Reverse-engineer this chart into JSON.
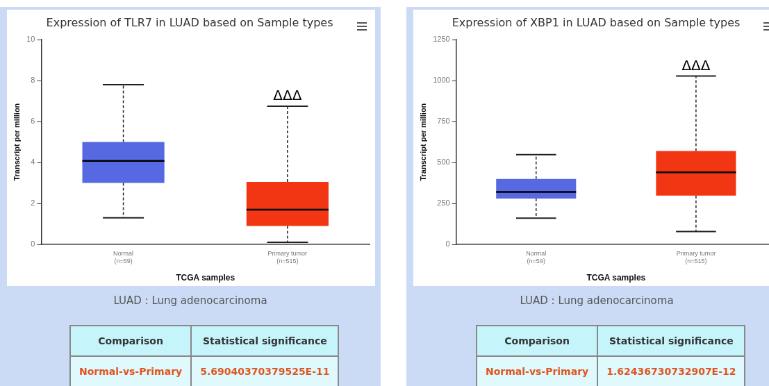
{
  "chart_data": [
    {
      "type": "box",
      "title": "Expression of TLR7 in LUAD based on Sample types",
      "xlabel": "TCGA samples",
      "ylabel": "Transcript per million",
      "categories": [
        "Normal\n(n=59)",
        "Primary tumor\n(n=515)"
      ],
      "colors": [
        "#5668e2",
        "#f23513"
      ],
      "boxes": [
        {
          "low": 1.3,
          "q1": 3.0,
          "median": 4.08,
          "q3": 5.0,
          "high": 7.8
        },
        {
          "low": 0.1,
          "q1": 0.9,
          "median": 1.7,
          "q3": 3.05,
          "high": 6.75
        }
      ],
      "ylim": [
        0,
        10
      ],
      "yticks": [
        0,
        2,
        4,
        6,
        8,
        10
      ],
      "grid": false,
      "legend": false,
      "annotations": [
        {
          "text": "ΔΔΔ",
          "x": "Primary tumor\n(n=515)",
          "y": 6.75
        },
        "LUAD : Lung adenocarcinoma",
        "Comparison",
        "Statistical significance",
        "Normal-vs-Primary",
        "5.69040370379525E-11"
      ]
    },
    {
      "type": "box",
      "title": "Expression of XBP1 in LUAD based on Sample types",
      "xlabel": "TCGA samples",
      "ylabel": "Transcript per million",
      "categories": [
        "Normal\n(n=59)",
        "Primary tumor\n(n=515)"
      ],
      "colors": [
        "#5668e2",
        "#f23513"
      ],
      "boxes": [
        {
          "low": 160,
          "q1": 280,
          "median": 320,
          "q3": 400,
          "high": 548
        },
        {
          "low": 78,
          "q1": 298,
          "median": 440,
          "q3": 570,
          "high": 1028
        }
      ],
      "ylim": [
        0,
        1250
      ],
      "yticks": [
        0,
        250,
        500,
        750,
        1000,
        1250
      ],
      "grid": false,
      "legend": false,
      "annotations": [
        {
          "text": "ΔΔΔ",
          "x": "Primary tumor\n(n=515)",
          "y": 1028
        },
        "LUAD : Lung adenocarcinoma",
        "Comparison",
        "Statistical significance",
        "Normal-vs-Primary",
        "1.62436730732907E-12"
      ]
    }
  ]
}
